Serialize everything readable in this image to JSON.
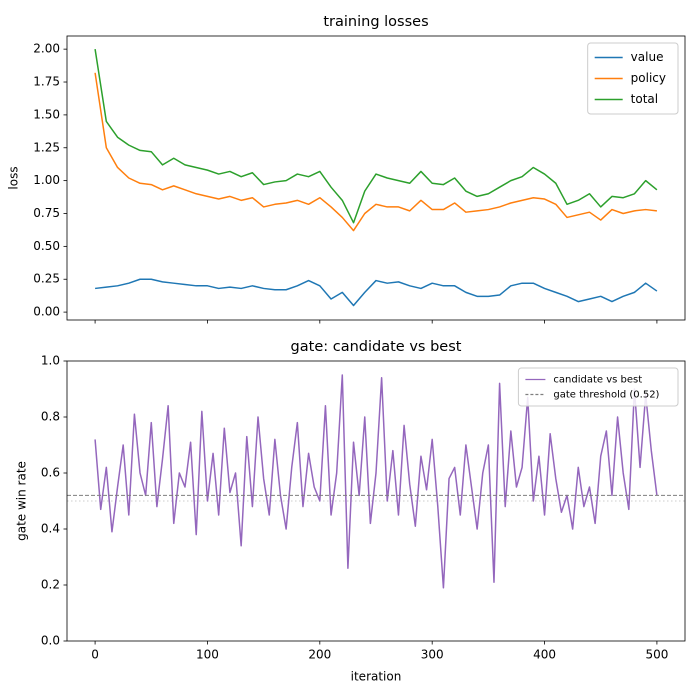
{
  "chart_data": [
    {
      "type": "line",
      "title": "training losses",
      "ylabel": "loss",
      "x": [
        0,
        10,
        20,
        30,
        40,
        50,
        60,
        70,
        80,
        90,
        100,
        110,
        120,
        130,
        140,
        150,
        160,
        170,
        180,
        190,
        200,
        210,
        220,
        230,
        240,
        250,
        260,
        270,
        280,
        290,
        300,
        310,
        320,
        330,
        340,
        350,
        360,
        370,
        380,
        390,
        400,
        410,
        420,
        430,
        440,
        450,
        460,
        470,
        480,
        490,
        500
      ],
      "series": [
        {
          "name": "value",
          "color": "#1f77b4",
          "values": [
            0.18,
            0.19,
            0.2,
            0.22,
            0.25,
            0.25,
            0.23,
            0.22,
            0.21,
            0.2,
            0.2,
            0.18,
            0.19,
            0.18,
            0.2,
            0.18,
            0.17,
            0.17,
            0.2,
            0.24,
            0.2,
            0.1,
            0.15,
            0.05,
            0.15,
            0.24,
            0.22,
            0.23,
            0.2,
            0.18,
            0.22,
            0.2,
            0.2,
            0.15,
            0.12,
            0.12,
            0.13,
            0.2,
            0.22,
            0.22,
            0.18,
            0.15,
            0.12,
            0.08,
            0.1,
            0.12,
            0.08,
            0.12,
            0.15,
            0.22,
            0.16
          ]
        },
        {
          "name": "policy",
          "color": "#ff7f0e",
          "values": [
            1.82,
            1.25,
            1.1,
            1.02,
            0.98,
            0.97,
            0.93,
            0.96,
            0.93,
            0.9,
            0.88,
            0.86,
            0.88,
            0.85,
            0.87,
            0.8,
            0.82,
            0.83,
            0.85,
            0.82,
            0.87,
            0.8,
            0.72,
            0.62,
            0.75,
            0.82,
            0.8,
            0.8,
            0.77,
            0.85,
            0.78,
            0.78,
            0.83,
            0.76,
            0.77,
            0.78,
            0.8,
            0.83,
            0.85,
            0.87,
            0.86,
            0.82,
            0.72,
            0.74,
            0.76,
            0.7,
            0.78,
            0.75,
            0.77,
            0.78,
            0.77
          ]
        },
        {
          "name": "total",
          "color": "#2ca02c",
          "values": [
            2.0,
            1.45,
            1.33,
            1.27,
            1.23,
            1.22,
            1.12,
            1.17,
            1.12,
            1.1,
            1.08,
            1.05,
            1.07,
            1.03,
            1.06,
            0.97,
            0.99,
            1.0,
            1.05,
            1.03,
            1.07,
            0.95,
            0.85,
            0.68,
            0.92,
            1.05,
            1.02,
            1.0,
            0.98,
            1.07,
            0.98,
            0.97,
            1.02,
            0.92,
            0.88,
            0.9,
            0.95,
            1.0,
            1.03,
            1.1,
            1.05,
            0.98,
            0.82,
            0.85,
            0.9,
            0.8,
            0.88,
            0.87,
            0.9,
            1.0,
            0.93
          ]
        }
      ],
      "xlim": [
        -25,
        525
      ],
      "xticks": [
        0,
        100,
        200,
        300,
        400,
        500
      ],
      "xtick_labels": false,
      "ylim": [
        -0.06,
        2.1
      ],
      "yticks": [
        {
          "value": 0,
          "label": "0.00"
        },
        0.25,
        {
          "value": 0.5,
          "label": "0.50"
        },
        0.75,
        {
          "value": 1,
          "label": "1.00"
        },
        1.25,
        {
          "value": 1.5,
          "label": "1.50"
        },
        1.75,
        {
          "value": 2,
          "label": "2.00"
        }
      ],
      "legend": "upper right"
    },
    {
      "type": "line",
      "title": "gate: candidate vs best",
      "xlabel": "iteration",
      "ylabel": "gate win rate",
      "x": [
        0,
        5,
        10,
        15,
        20,
        25,
        30,
        35,
        40,
        45,
        50,
        55,
        60,
        65,
        70,
        75,
        80,
        85,
        90,
        95,
        100,
        105,
        110,
        115,
        120,
        125,
        130,
        135,
        140,
        145,
        150,
        155,
        160,
        165,
        170,
        175,
        180,
        185,
        190,
        195,
        200,
        205,
        210,
        215,
        220,
        225,
        230,
        235,
        240,
        245,
        250,
        255,
        260,
        265,
        270,
        275,
        280,
        285,
        290,
        295,
        300,
        305,
        310,
        315,
        320,
        325,
        330,
        335,
        340,
        345,
        350,
        355,
        360,
        365,
        370,
        375,
        380,
        385,
        390,
        395,
        400,
        405,
        410,
        415,
        420,
        425,
        430,
        435,
        440,
        445,
        450,
        455,
        460,
        465,
        470,
        475,
        480,
        485,
        490,
        495,
        500
      ],
      "series": [
        {
          "name": "candidate vs best",
          "color": "#9467bd",
          "values": [
            0.72,
            0.47,
            0.62,
            0.39,
            0.55,
            0.7,
            0.45,
            0.81,
            0.6,
            0.52,
            0.78,
            0.48,
            0.65,
            0.84,
            0.42,
            0.6,
            0.55,
            0.71,
            0.38,
            0.82,
            0.5,
            0.67,
            0.45,
            0.76,
            0.53,
            0.6,
            0.34,
            0.73,
            0.48,
            0.8,
            0.58,
            0.45,
            0.72,
            0.52,
            0.4,
            0.62,
            0.78,
            0.48,
            0.67,
            0.55,
            0.5,
            0.84,
            0.45,
            0.6,
            0.95,
            0.26,
            0.71,
            0.52,
            0.8,
            0.42,
            0.6,
            0.94,
            0.5,
            0.68,
            0.45,
            0.77,
            0.56,
            0.41,
            0.66,
            0.54,
            0.72,
            0.48,
            0.19,
            0.58,
            0.62,
            0.45,
            0.7,
            0.55,
            0.4,
            0.6,
            0.7,
            0.21,
            0.92,
            0.48,
            0.75,
            0.55,
            0.62,
            0.87,
            0.5,
            0.66,
            0.45,
            0.74,
            0.58,
            0.46,
            0.52,
            0.4,
            0.62,
            0.48,
            0.55,
            0.42,
            0.66,
            0.75,
            0.52,
            0.8,
            0.6,
            0.47,
            0.9,
            0.62,
            0.88,
            0.68,
            0.52
          ]
        }
      ],
      "threshold": {
        "value": 0.52,
        "label": "gate threshold (0.52)",
        "color": "#7f7f7f"
      },
      "reference_line": {
        "value": 0.5,
        "color": "#cccccc"
      },
      "xlim": [
        -25,
        525
      ],
      "xticks": [
        0,
        100,
        200,
        300,
        400,
        500
      ],
      "xtick_labels": true,
      "ylim": [
        0,
        1
      ],
      "yticks": [
        {
          "value": 0,
          "label": "0.0"
        },
        0.2,
        0.4,
        0.6,
        0.8,
        {
          "value": 1,
          "label": "1.0"
        }
      ],
      "legend": "upper right",
      "legend_font": "small"
    }
  ]
}
